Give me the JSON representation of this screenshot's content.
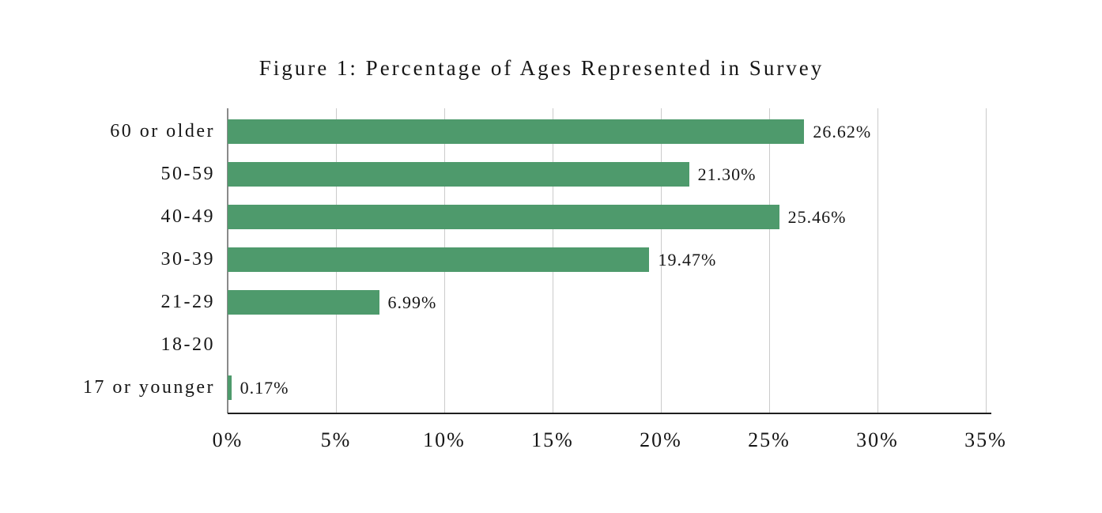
{
  "chart_data": {
    "type": "bar",
    "orientation": "horizontal",
    "title": "Figure 1: Percentage of Ages Represented in Survey",
    "categories": [
      "60 or older",
      "50-59",
      "40-49",
      "30-39",
      "21-29",
      "18-20",
      "17 or younger"
    ],
    "values": [
      26.62,
      21.3,
      25.46,
      19.47,
      6.99,
      0,
      0.17
    ],
    "value_labels": [
      "26.62%",
      "21.30%",
      "25.46%",
      "19.47%",
      "6.99%",
      "",
      "0.17%"
    ],
    "x_ticks": [
      "0%",
      "5%",
      "10%",
      "15%",
      "20%",
      "25%",
      "30%",
      "35%"
    ],
    "xlim": [
      0,
      35
    ],
    "xlabel": "",
    "ylabel": "",
    "grid": true,
    "legend": false,
    "colors": {
      "bar": "#4e9a6c",
      "gridline": "#cbcbcb",
      "zero_axis": "#8a8a8a",
      "x_axis": "#1f1f1f",
      "text": "#161616",
      "background": "#ffffff"
    }
  }
}
